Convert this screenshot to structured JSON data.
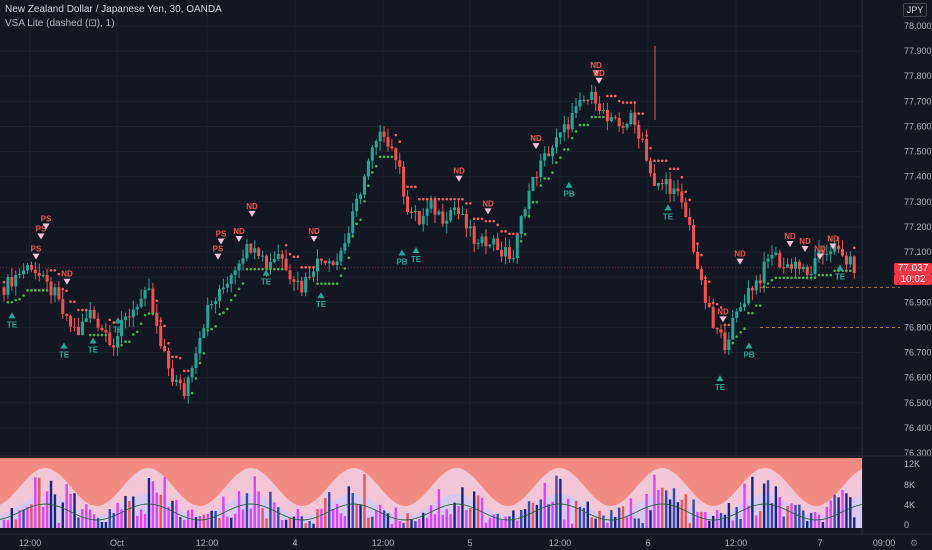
{
  "header": {
    "symbol_line": "New Zealand Dollar / Japanese Yen, 30, OANDA",
    "indicator_line": "VSA Lite (dashed (⊡), 1)",
    "currency": "JPY"
  },
  "price_tag": {
    "price": "77.037",
    "countdown": "10:02",
    "color": "#f23645"
  },
  "colors": {
    "up": "#26a69a",
    "down": "#ef5350",
    "background": "#131722",
    "dots_bull": "#4caf50",
    "dots_bear": "#f06060",
    "volume_bg": "#f28b82"
  },
  "chart_data": [
    {
      "type": "candlestick",
      "symbol": "NZD/JPY",
      "interval": "30",
      "y_ticks": [
        "78.000",
        "77.900",
        "77.800",
        "77.700",
        "77.600",
        "77.500",
        "77.400",
        "77.300",
        "77.200",
        "77.100",
        "77.000",
        "76.900",
        "76.800",
        "76.700",
        "76.600",
        "76.500",
        "76.400",
        "76.300"
      ],
      "ylim": [
        76.3,
        78.05
      ],
      "x_tick_labels": [
        "12:00",
        "Oct",
        "12:00",
        "4",
        "12:00",
        "5",
        "12:00",
        "6",
        "12:00",
        "7",
        "09:00"
      ],
      "close_series": [
        {
          "i": 0,
          "c": 76.96
        },
        {
          "i": 4,
          "c": 77.02
        },
        {
          "i": 7,
          "c": 77.05
        },
        {
          "i": 10,
          "c": 76.98
        },
        {
          "i": 13,
          "c": 76.93
        },
        {
          "i": 16,
          "c": 76.82
        },
        {
          "i": 19,
          "c": 76.78
        },
        {
          "i": 22,
          "c": 76.86
        },
        {
          "i": 25,
          "c": 76.8
        },
        {
          "i": 28,
          "c": 76.74
        },
        {
          "i": 31,
          "c": 76.83
        },
        {
          "i": 34,
          "c": 76.9
        },
        {
          "i": 37,
          "c": 76.93
        },
        {
          "i": 40,
          "c": 76.72
        },
        {
          "i": 43,
          "c": 76.6
        },
        {
          "i": 46,
          "c": 76.54
        },
        {
          "i": 49,
          "c": 76.72
        },
        {
          "i": 52,
          "c": 76.87
        },
        {
          "i": 55,
          "c": 76.93
        },
        {
          "i": 58,
          "c": 77.02
        },
        {
          "i": 61,
          "c": 77.1
        },
        {
          "i": 64,
          "c": 77.14
        },
        {
          "i": 67,
          "c": 77.05
        },
        {
          "i": 70,
          "c": 77.1
        },
        {
          "i": 73,
          "c": 77.02
        },
        {
          "i": 76,
          "c": 76.96
        },
        {
          "i": 79,
          "c": 77.05
        },
        {
          "i": 82,
          "c": 77.08
        },
        {
          "i": 85,
          "c": 77.07
        },
        {
          "i": 88,
          "c": 77.18
        },
        {
          "i": 91,
          "c": 77.35
        },
        {
          "i": 94,
          "c": 77.5
        },
        {
          "i": 97,
          "c": 77.58
        },
        {
          "i": 100,
          "c": 77.48
        },
        {
          "i": 103,
          "c": 77.28
        },
        {
          "i": 106,
          "c": 77.22
        },
        {
          "i": 109,
          "c": 77.28
        },
        {
          "i": 112,
          "c": 77.24
        },
        {
          "i": 115,
          "c": 77.28
        },
        {
          "i": 118,
          "c": 77.2
        },
        {
          "i": 121,
          "c": 77.12
        },
        {
          "i": 124,
          "c": 77.16
        },
        {
          "i": 127,
          "c": 77.1
        },
        {
          "i": 130,
          "c": 77.08
        },
        {
          "i": 133,
          "c": 77.3
        },
        {
          "i": 136,
          "c": 77.42
        },
        {
          "i": 139,
          "c": 77.5
        },
        {
          "i": 142,
          "c": 77.56
        },
        {
          "i": 145,
          "c": 77.64
        },
        {
          "i": 148,
          "c": 77.7
        },
        {
          "i": 151,
          "c": 77.72
        },
        {
          "i": 154,
          "c": 77.62
        },
        {
          "i": 157,
          "c": 77.6
        },
        {
          "i": 160,
          "c": 77.63
        },
        {
          "i": 163,
          "c": 77.55
        },
        {
          "i": 166,
          "c": 77.35
        },
        {
          "i": 169,
          "c": 77.38
        },
        {
          "i": 172,
          "c": 77.32
        },
        {
          "i": 175,
          "c": 77.2
        },
        {
          "i": 178,
          "c": 76.96
        },
        {
          "i": 181,
          "c": 76.8
        },
        {
          "i": 184,
          "c": 76.74
        },
        {
          "i": 187,
          "c": 76.85
        },
        {
          "i": 190,
          "c": 76.95
        },
        {
          "i": 193,
          "c": 77.0
        },
        {
          "i": 196,
          "c": 77.1
        },
        {
          "i": 199,
          "c": 77.04
        },
        {
          "i": 202,
          "c": 77.06
        },
        {
          "i": 205,
          "c": 77.0
        },
        {
          "i": 208,
          "c": 77.08
        },
        {
          "i": 211,
          "c": 77.12
        },
        {
          "i": 214,
          "c": 77.08
        },
        {
          "i": 217,
          "c": 77.04
        }
      ],
      "signals": [
        {
          "label": "TE",
          "dir": "up",
          "x": 12,
          "price": 76.86
        },
        {
          "label": "PS",
          "dir": "down",
          "x": 36,
          "price": 77.07
        },
        {
          "label": "PS",
          "dir": "down",
          "x": 41,
          "price": 77.15
        },
        {
          "label": "PS",
          "dir": "down",
          "x": 46,
          "price": 77.19
        },
        {
          "label": "TE",
          "dir": "up",
          "x": 64,
          "price": 76.74
        },
        {
          "label": "ND",
          "dir": "down",
          "x": 67,
          "price": 76.97
        },
        {
          "label": "TE",
          "dir": "up",
          "x": 93,
          "price": 76.76
        },
        {
          "label": "TE",
          "dir": "up",
          "x": 118,
          "price": 76.84
        },
        {
          "label": "PS",
          "dir": "down",
          "x": 218,
          "price": 77.07
        },
        {
          "label": "PS",
          "dir": "down",
          "x": 221,
          "price": 77.13
        },
        {
          "label": "ND",
          "dir": "down",
          "x": 239,
          "price": 77.14
        },
        {
          "label": "ND",
          "dir": "down",
          "x": 252,
          "price": 77.24
        },
        {
          "label": "TE",
          "dir": "up",
          "x": 266,
          "price": 77.03
        },
        {
          "label": "ND",
          "dir": "down",
          "x": 314,
          "price": 77.14
        },
        {
          "label": "TE",
          "dir": "up",
          "x": 321,
          "price": 76.94
        },
        {
          "label": "PB",
          "dir": "up",
          "x": 402,
          "price": 77.11
        },
        {
          "label": "TE",
          "dir": "up",
          "x": 416,
          "price": 77.12
        },
        {
          "label": "ND",
          "dir": "down",
          "x": 459,
          "price": 77.38
        },
        {
          "label": "ND",
          "dir": "down",
          "x": 488,
          "price": 77.25
        },
        {
          "label": "ND",
          "dir": "down",
          "x": 536,
          "price": 77.51
        },
        {
          "label": "PB",
          "dir": "up",
          "x": 569,
          "price": 77.38
        },
        {
          "label": "ND",
          "dir": "down",
          "x": 596,
          "price": 77.8
        },
        {
          "label": "ND",
          "dir": "down",
          "x": 599,
          "price": 77.77
        },
        {
          "label": "TE",
          "dir": "up",
          "x": 668,
          "price": 77.29
        },
        {
          "label": "ND",
          "dir": "down",
          "x": 740,
          "price": 77.05
        },
        {
          "label": "ND",
          "dir": "down",
          "x": 723,
          "price": 76.82
        },
        {
          "label": "TE",
          "dir": "up",
          "x": 720,
          "price": 76.61
        },
        {
          "label": "PB",
          "dir": "up",
          "x": 749,
          "price": 76.74
        },
        {
          "label": "ND",
          "dir": "down",
          "x": 790,
          "price": 77.12
        },
        {
          "label": "ND",
          "dir": "down",
          "x": 805,
          "price": 77.1
        },
        {
          "label": "ND",
          "dir": "down",
          "x": 820,
          "price": 77.07
        },
        {
          "label": "ND",
          "dir": "down",
          "x": 833,
          "price": 77.11
        },
        {
          "label": "TE",
          "dir": "up",
          "x": 840,
          "price": 77.05
        }
      ],
      "levels": [
        {
          "price": 76.96,
          "style": "dashed"
        },
        {
          "price": 76.8,
          "style": "dashed"
        }
      ]
    },
    {
      "type": "bar",
      "series_name": "volume",
      "y_ticks": [
        "12K",
        "8K",
        "4K",
        "0"
      ],
      "ylim": [
        0,
        13000
      ]
    }
  ]
}
